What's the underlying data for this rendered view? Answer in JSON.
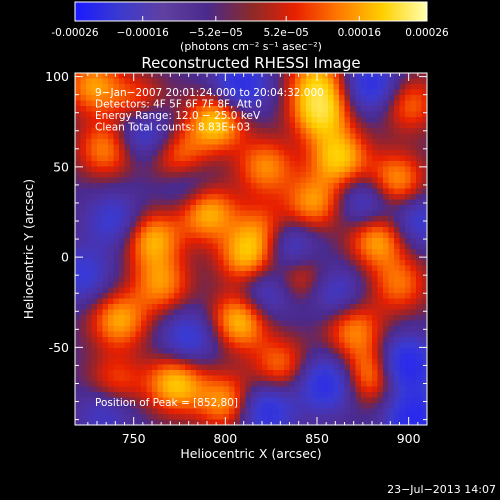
{
  "chart_data": {
    "type": "heatmap",
    "title": "Reconstructed RHESSI Image",
    "xlabel": "Heliocentric X (arcsec)",
    "ylabel": "Heliocentric Y (arcsec)",
    "xlim": [
      718,
      910
    ],
    "ylim": [
      -93,
      102
    ],
    "x_ticks": [
      750,
      800,
      850,
      900
    ],
    "y_ticks": [
      -50,
      0,
      50,
      100
    ],
    "colorbar": {
      "min": -0.00026,
      "max": 0.00026,
      "ticks": [
        -0.00026,
        -0.00016,
        -5.2e-05,
        5.2e-05,
        0.00016,
        0.00026
      ],
      "tick_labels": [
        "-0.00026",
        "−0.00016",
        "−5.2e−05",
        "5.2e−05",
        "0.00016",
        "0.00026"
      ],
      "colors": [
        "#1a1aff",
        "#3a3ad0",
        "#6040a0",
        "#4a2a8c",
        "#8a2a2a",
        "#e82000",
        "#ff7a00",
        "#ffd000",
        "#ffffb0"
      ],
      "unit_label": "(photons cm⁻² s⁻¹ asec⁻²)"
    },
    "annotations": [
      "9−Jan−2007 20:01:24.000 to 20:04:32.000",
      "Detectors: 4F 5F 6F 7F 8F, Att 0",
      "Energy Range: 12.0 − 25.0 keV",
      "Clean    Total counts: 8.83E+03"
    ],
    "peak_text": "Position of Peak = [852,80]",
    "hot_spots": [
      {
        "x": 795,
        "y": 75,
        "v": 1.0
      },
      {
        "x": 852,
        "y": 80,
        "v": 1.0
      },
      {
        "x": 862,
        "y": 55,
        "v": 0.95
      },
      {
        "x": 773,
        "y": -70,
        "v": 0.95
      },
      {
        "x": 808,
        "y": -35,
        "v": 0.95
      },
      {
        "x": 760,
        "y": 10,
        "v": 0.85
      },
      {
        "x": 742,
        "y": -35,
        "v": 0.8
      },
      {
        "x": 790,
        "y": 25,
        "v": 0.9
      },
      {
        "x": 812,
        "y": 0,
        "v": 0.85
      },
      {
        "x": 883,
        "y": 10,
        "v": 0.85
      },
      {
        "x": 893,
        "y": 42,
        "v": 0.8
      },
      {
        "x": 848,
        "y": 30,
        "v": 0.75
      },
      {
        "x": 870,
        "y": -40,
        "v": 0.7
      },
      {
        "x": 880,
        "y": -65,
        "v": 0.8
      },
      {
        "x": 735,
        "y": 60,
        "v": 0.7
      },
      {
        "x": 728,
        "y": 95,
        "v": 0.75
      },
      {
        "x": 800,
        "y": -80,
        "v": 0.75
      },
      {
        "x": 822,
        "y": 50,
        "v": 0.7
      },
      {
        "x": 775,
        "y": 55,
        "v": 0.65
      },
      {
        "x": 765,
        "y": -15,
        "v": 0.7
      },
      {
        "x": 840,
        "y": -10,
        "v": 0.6
      },
      {
        "x": 895,
        "y": -15,
        "v": 0.6
      },
      {
        "x": 740,
        "y": -70,
        "v": 0.55
      },
      {
        "x": 830,
        "y": -60,
        "v": 0.6
      },
      {
        "x": 850,
        "y": 98,
        "v": 0.75
      },
      {
        "x": 900,
        "y": 85,
        "v": 0.6
      },
      {
        "x": 820,
        "y": 15,
        "v": 0.55
      },
      {
        "x": 752,
        "y": 85,
        "v": 0.55
      }
    ],
    "cold_spots": [
      {
        "x": 898,
        "y": -60,
        "v": -1.0
      },
      {
        "x": 903,
        "y": -90,
        "v": -0.9
      },
      {
        "x": 808,
        "y": 95,
        "v": -0.8
      },
      {
        "x": 755,
        "y": 70,
        "v": -0.7
      },
      {
        "x": 855,
        "y": -70,
        "v": -0.8
      },
      {
        "x": 822,
        "y": -85,
        "v": -0.75
      },
      {
        "x": 835,
        "y": 5,
        "v": -0.7
      },
      {
        "x": 880,
        "y": 95,
        "v": -0.75
      },
      {
        "x": 877,
        "y": 30,
        "v": -0.6
      },
      {
        "x": 822,
        "y": -20,
        "v": -0.6
      },
      {
        "x": 740,
        "y": 20,
        "v": -0.55
      },
      {
        "x": 780,
        "y": -45,
        "v": -0.6
      },
      {
        "x": 722,
        "y": -10,
        "v": -0.55
      },
      {
        "x": 860,
        "y": -20,
        "v": -0.5
      },
      {
        "x": 780,
        "y": 40,
        "v": -0.45
      },
      {
        "x": 905,
        "y": 20,
        "v": -0.55
      },
      {
        "x": 735,
        "y": -85,
        "v": -0.5
      }
    ]
  },
  "footer": {
    "timestamp": "23−Jul−2013 14:07"
  }
}
